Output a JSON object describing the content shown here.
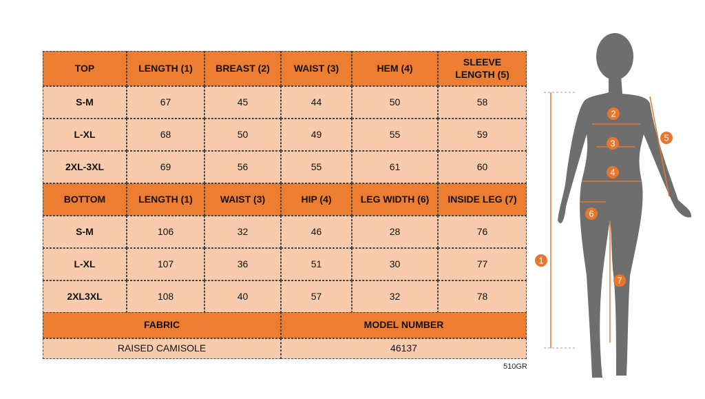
{
  "top_table": {
    "headers": [
      "TOP",
      "LENGTH (1)",
      "BREAST (2)",
      "WAIST (3)",
      "HEM (4)",
      "SLEEVE LENGTH (5)"
    ],
    "rows": [
      [
        "S-M",
        67,
        45,
        44,
        50,
        58
      ],
      [
        "L-XL",
        68,
        50,
        49,
        55,
        59
      ],
      [
        "2XL-3XL",
        69,
        56,
        55,
        61,
        60
      ]
    ]
  },
  "bottom_table": {
    "headers": [
      "BOTTOM",
      "LENGTH (1)",
      "WAIST (3)",
      "HIP (4)",
      "LEG WIDTH (6)",
      "INSIDE LEG (7)"
    ],
    "rows": [
      [
        "S-M",
        106,
        32,
        46,
        28,
        76
      ],
      [
        "L-XL",
        107,
        36,
        51,
        30,
        77
      ],
      [
        "2XL3XL",
        108,
        40,
        57,
        32,
        78
      ]
    ]
  },
  "fabric_table": {
    "headers": [
      "FABRIC",
      "MODEL NUMBER"
    ],
    "values": [
      "RAISED CAMISOLE",
      "46137"
    ]
  },
  "figure": {
    "markers": [
      "1",
      "2",
      "3",
      "4",
      "5",
      "6",
      "7"
    ]
  },
  "code": "510GR"
}
